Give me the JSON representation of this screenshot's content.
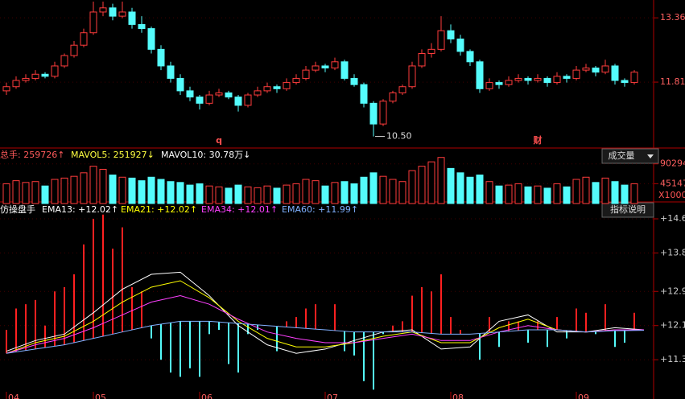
{
  "chart_data": [
    {
      "type": "candlestick",
      "ylim": [
        10.24,
        13.79
      ],
      "yticks": [
        13.36,
        11.81
      ],
      "ohlc": [
        [
          11.6,
          11.8,
          11.5,
          11.7
        ],
        [
          11.7,
          11.95,
          11.65,
          11.85
        ],
        [
          11.85,
          12.0,
          11.8,
          11.9
        ],
        [
          11.9,
          12.1,
          11.85,
          12.0
        ],
        [
          12.0,
          12.05,
          11.9,
          11.95
        ],
        [
          11.95,
          12.3,
          11.9,
          12.2
        ],
        [
          12.2,
          12.5,
          12.15,
          12.45
        ],
        [
          12.45,
          12.8,
          12.4,
          12.7
        ],
        [
          12.7,
          13.1,
          12.65,
          13.0
        ],
        [
          13.0,
          13.75,
          12.95,
          13.5
        ],
        [
          13.5,
          13.75,
          13.4,
          13.6
        ],
        [
          13.6,
          13.7,
          13.3,
          13.4
        ],
        [
          13.4,
          13.75,
          13.35,
          13.5
        ],
        [
          13.5,
          13.6,
          13.1,
          13.2
        ],
        [
          13.2,
          13.4,
          13.0,
          13.1
        ],
        [
          13.1,
          13.15,
          12.5,
          12.6
        ],
        [
          12.6,
          12.7,
          12.1,
          12.2
        ],
        [
          12.2,
          12.3,
          11.8,
          11.9
        ],
        [
          11.9,
          12.0,
          11.5,
          11.6
        ],
        [
          11.6,
          11.7,
          11.35,
          11.45
        ],
        [
          11.45,
          11.5,
          11.15,
          11.3
        ],
        [
          11.3,
          11.6,
          11.25,
          11.5
        ],
        [
          11.5,
          11.65,
          11.45,
          11.55
        ],
        [
          11.55,
          11.6,
          11.4,
          11.45
        ],
        [
          11.45,
          11.5,
          11.1,
          11.25
        ],
        [
          11.25,
          11.55,
          11.2,
          11.5
        ],
        [
          11.5,
          11.7,
          11.45,
          11.6
        ],
        [
          11.6,
          11.8,
          11.55,
          11.7
        ],
        [
          11.7,
          11.75,
          11.55,
          11.65
        ],
        [
          11.65,
          11.9,
          11.6,
          11.8
        ],
        [
          11.8,
          12.0,
          11.75,
          11.9
        ],
        [
          11.9,
          12.2,
          11.85,
          12.1
        ],
        [
          12.1,
          12.3,
          12.05,
          12.2
        ],
        [
          12.2,
          12.25,
          12.05,
          12.15
        ],
        [
          12.15,
          12.4,
          12.1,
          12.3
        ],
        [
          12.3,
          12.35,
          11.85,
          11.9
        ],
        [
          11.9,
          12.0,
          11.7,
          11.75
        ],
        [
          11.75,
          11.8,
          11.2,
          11.3
        ],
        [
          11.3,
          11.35,
          10.5,
          10.8
        ],
        [
          10.8,
          11.4,
          10.75,
          11.35
        ],
        [
          11.35,
          11.6,
          11.3,
          11.55
        ],
        [
          11.55,
          11.75,
          11.5,
          11.7
        ],
        [
          11.7,
          12.3,
          11.65,
          12.2
        ],
        [
          12.2,
          12.6,
          12.15,
          12.5
        ],
        [
          12.5,
          12.75,
          12.4,
          12.6
        ],
        [
          12.6,
          13.4,
          12.55,
          13.05
        ],
        [
          13.05,
          13.2,
          12.75,
          12.85
        ],
        [
          12.85,
          12.95,
          12.45,
          12.55
        ],
        [
          12.55,
          12.6,
          12.2,
          12.3
        ],
        [
          12.3,
          12.35,
          11.55,
          11.65
        ],
        [
          11.65,
          11.9,
          11.6,
          11.8
        ],
        [
          11.8,
          11.85,
          11.65,
          11.75
        ],
        [
          11.75,
          11.95,
          11.7,
          11.85
        ],
        [
          11.85,
          12.0,
          11.8,
          11.9
        ],
        [
          11.9,
          11.95,
          11.75,
          11.85
        ],
        [
          11.85,
          12.0,
          11.8,
          11.9
        ],
        [
          11.9,
          11.95,
          11.7,
          11.8
        ],
        [
          11.8,
          12.05,
          11.75,
          11.95
        ],
        [
          11.95,
          12.0,
          11.8,
          11.9
        ],
        [
          11.9,
          12.2,
          11.85,
          12.1
        ],
        [
          12.1,
          12.25,
          12.05,
          12.15
        ],
        [
          12.15,
          12.2,
          11.95,
          12.05
        ],
        [
          12.05,
          12.35,
          12.0,
          12.2
        ],
        [
          12.2,
          12.25,
          11.75,
          11.85
        ],
        [
          11.85,
          11.9,
          11.7,
          11.8
        ],
        [
          11.8,
          12.1,
          11.75,
          12.05
        ]
      ],
      "low": {
        "value": 10.5,
        "label": "10.50"
      },
      "annotations": [
        {
          "text": "q",
          "index": 22
        },
        {
          "text": "财",
          "index": 55
        }
      ]
    },
    {
      "type": "bar",
      "ylim": [
        0,
        121000
      ],
      "yticks": [
        90294,
        45147
      ],
      "unit_label": "X1000",
      "button": "成交量",
      "legend": [
        {
          "text": "总手: 259726↑",
          "color": "#ff5a5a"
        },
        {
          "text": "MAVOL5: 251927↓",
          "color": "#ffff40"
        },
        {
          "text": "MAVOL10: 30.78万↓",
          "color": "#ffffff"
        }
      ],
      "values": [
        45000,
        52000,
        48000,
        50000,
        40000,
        55000,
        58000,
        62000,
        70000,
        85000,
        78000,
        65000,
        60000,
        58000,
        52000,
        60000,
        55000,
        50000,
        48000,
        42000,
        45000,
        40000,
        38000,
        35000,
        42000,
        38000,
        36000,
        40000,
        35000,
        42000,
        45000,
        55000,
        52000,
        40000,
        48000,
        50000,
        45000,
        60000,
        70000,
        62000,
        55000,
        50000,
        75000,
        85000,
        95000,
        105000,
        80000,
        70000,
        60000,
        65000,
        50000,
        40000,
        42000,
        45000,
        38000,
        40000,
        35000,
        45000,
        38000,
        55000,
        60000,
        48000,
        58000,
        50000,
        42000,
        45000
      ]
    },
    {
      "type": "line",
      "name": "仿操盘手",
      "button": "指标说明",
      "ylim": [
        10.55,
        14.77
      ],
      "yticks": [
        {
          "value": 14.6,
          "label": "+14.6"
        },
        {
          "value": 13.8,
          "label": "+13.8"
        },
        {
          "value": 12.9,
          "label": "+12.9"
        },
        {
          "value": 12.1,
          "label": "+12.1"
        },
        {
          "value": 11.3,
          "label": "+11.3"
        }
      ],
      "series": [
        {
          "name": "EMA13: +12.02↑",
          "color": "#ffffff",
          "values": [
            11.5,
            11.75,
            11.9,
            12.4,
            12.95,
            13.3,
            13.35,
            12.8,
            12.1,
            11.65,
            11.45,
            11.55,
            11.75,
            11.95,
            12.0,
            11.55,
            11.6,
            12.2,
            12.35,
            11.95,
            11.95,
            12.05,
            12.0
          ]
        },
        {
          "name": "EMA21: +12.02↑",
          "color": "#ffff00",
          "values": [
            11.45,
            11.7,
            11.85,
            12.2,
            12.65,
            13.0,
            13.15,
            12.75,
            12.2,
            11.8,
            11.6,
            11.6,
            11.7,
            11.85,
            11.95,
            11.7,
            11.7,
            12.05,
            12.25,
            12.0,
            11.95,
            12.0,
            12.0
          ]
        },
        {
          "name": "EMA34: +12.01↑",
          "color": "#ff40ff",
          "values": [
            11.45,
            11.65,
            11.8,
            12.05,
            12.35,
            12.65,
            12.8,
            12.6,
            12.25,
            11.95,
            11.8,
            11.7,
            11.7,
            11.8,
            11.9,
            11.75,
            11.75,
            11.95,
            12.1,
            12.0,
            11.95,
            12.0,
            12.0
          ]
        },
        {
          "name": "EMA60: +11.99↑",
          "color": "#80b0ff",
          "values": [
            11.45,
            11.55,
            11.65,
            11.8,
            11.95,
            12.1,
            12.2,
            12.2,
            12.15,
            12.1,
            12.05,
            12.0,
            11.95,
            11.95,
            11.95,
            11.9,
            11.9,
            11.95,
            12.0,
            12.0,
            11.95,
            11.98,
            11.99
          ]
        }
      ],
      "osc": [
        12.0,
        12.5,
        12.6,
        12.7,
        12.1,
        12.9,
        13.0,
        13.3,
        14.0,
        14.6,
        14.7,
        13.9,
        14.4,
        13.0,
        12.9,
        11.8,
        11.3,
        11.0,
        10.9,
        11.1,
        10.9,
        11.9,
        12.0,
        11.2,
        11.0,
        11.9,
        12.0,
        12.1,
        11.5,
        12.2,
        12.3,
        12.5,
        12.6,
        12.0,
        12.6,
        11.5,
        11.4,
        10.8,
        10.6,
        11.9,
        12.1,
        12.2,
        12.8,
        13.0,
        12.9,
        13.3,
        12.3,
        12.0,
        11.9,
        11.3,
        12.3,
        11.6,
        12.2,
        12.2,
        11.7,
        12.2,
        11.6,
        12.3,
        11.8,
        12.5,
        12.4,
        11.9,
        12.6,
        11.6,
        11.7,
        12.4
      ],
      "x_labels": [
        {
          "index": 0,
          "label": "04"
        },
        {
          "index": 9,
          "label": "05"
        },
        {
          "index": 20,
          "label": "06"
        },
        {
          "index": 33,
          "label": "07"
        },
        {
          "index": 46,
          "label": "08"
        },
        {
          "index": 59,
          "label": "09"
        }
      ]
    }
  ]
}
